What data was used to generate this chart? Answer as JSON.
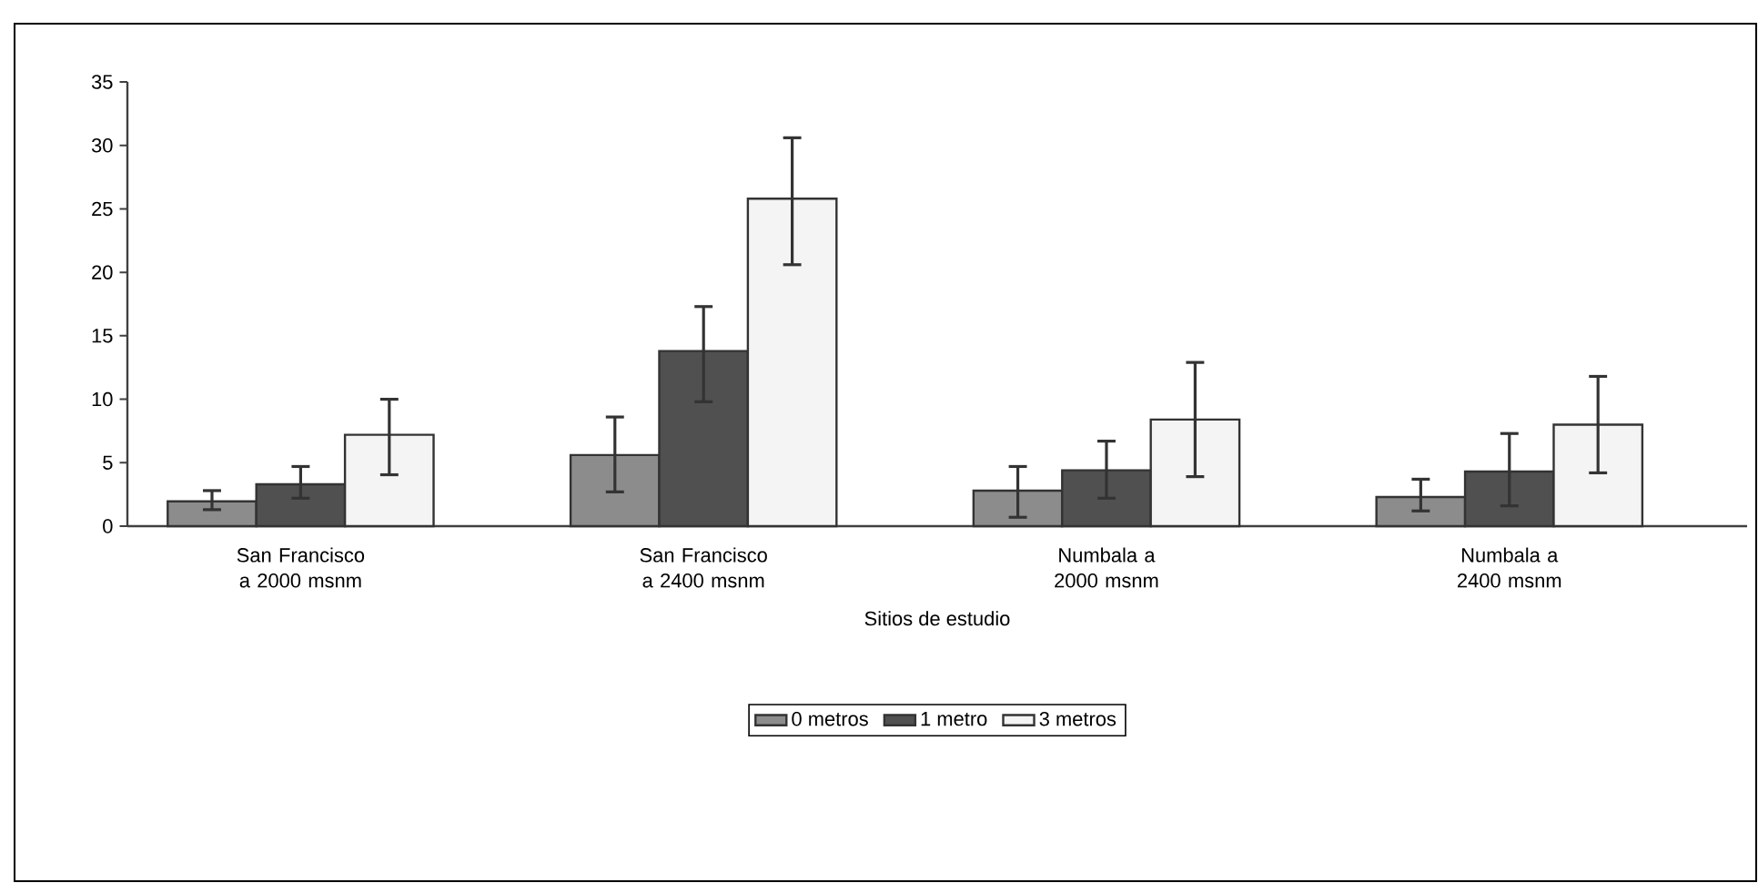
{
  "chart_data": {
    "type": "bar",
    "xlabel": "Sitios de estudio",
    "categories": [
      "San Francisco a 2000 msnm",
      "San Francisco a 2400 msnm",
      "Numbala a 2000 msnm",
      "Numbala a 2400 msnm"
    ],
    "series": [
      {
        "name": "0 metros",
        "color": "#8c8c8c",
        "values": [
          1.95,
          5.6,
          2.8,
          2.3
        ],
        "errors": [
          [
            1.3,
            2.8
          ],
          [
            2.7,
            8.6
          ],
          [
            0.7,
            4.7
          ],
          [
            1.2,
            3.7
          ]
        ]
      },
      {
        "name": "1 metro",
        "color": "#505050",
        "values": [
          3.3,
          13.8,
          4.4,
          4.3
        ],
        "errors": [
          [
            2.2,
            4.7
          ],
          [
            9.8,
            17.3
          ],
          [
            2.2,
            6.7
          ],
          [
            1.6,
            7.3
          ]
        ]
      },
      {
        "name": "3 metros",
        "color": "#f4f4f4",
        "values": [
          7.2,
          25.8,
          8.4,
          8.0
        ],
        "errors": [
          [
            4.05,
            10.0
          ],
          [
            20.6,
            30.6
          ],
          [
            3.9,
            12.9
          ],
          [
            4.2,
            11.8
          ]
        ]
      }
    ],
    "ylim": [
      0,
      35
    ],
    "yticks": [
      0,
      5,
      10,
      15,
      20,
      25,
      30,
      35
    ],
    "grid": false,
    "legend": "bottom"
  }
}
